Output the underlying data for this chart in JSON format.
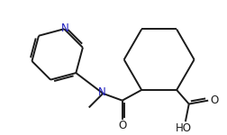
{
  "bg_color": "#ffffff",
  "line_color": "#1a1a1a",
  "N_color": "#2020c0",
  "lw": 1.4,
  "fig_width": 2.52,
  "fig_height": 1.5,
  "dpi": 100,
  "xlim": [
    0,
    252
  ],
  "ylim": [
    0,
    150
  ]
}
